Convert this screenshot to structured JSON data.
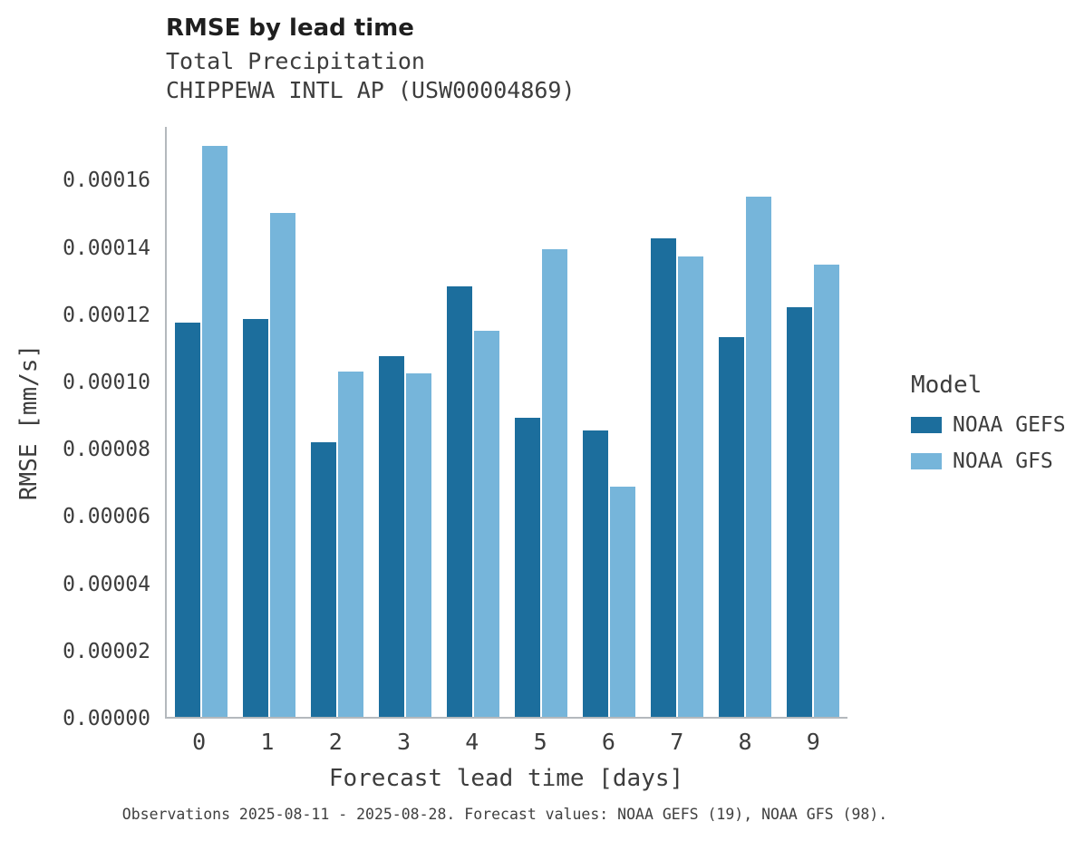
{
  "page": {
    "background": "#ffffff"
  },
  "chart_data": {
    "type": "bar",
    "title": "RMSE by lead time",
    "subtitle": [
      "Total Precipitation",
      "CHIPPEWA INTL AP (USW00004869)"
    ],
    "xlabel": "Forecast lead time [days]",
    "ylabel": "RMSE [mm/s]",
    "categories": [
      "0",
      "1",
      "2",
      "3",
      "4",
      "5",
      "6",
      "7",
      "8",
      "9"
    ],
    "series": [
      {
        "name": "NOAA GEFS",
        "color": "#1c6e9d",
        "values": [
          0.0001176,
          0.0001186,
          8.2e-05,
          0.0001075,
          0.0001284,
          8.92e-05,
          8.54e-05,
          0.0001428,
          0.0001134,
          0.0001221
        ]
      },
      {
        "name": "NOAA GFS",
        "color": "#76b5da",
        "values": [
          0.0001702,
          0.0001504,
          0.000103,
          0.0001024,
          0.0001153,
          0.0001394,
          6.86e-05,
          0.0001374,
          0.0001552,
          0.0001348
        ]
      }
    ],
    "ylim": [
      0,
      0.000176
    ],
    "ytick_step": 2e-05,
    "ytick_max": 0.00016,
    "ytick_decimals": 5,
    "grid": false,
    "legend": {
      "title": "Model",
      "position": "right"
    }
  },
  "caption": "Observations 2025-08-11 - 2025-08-28. Forecast values: NOAA GEFS (19), NOAA GFS (98)."
}
